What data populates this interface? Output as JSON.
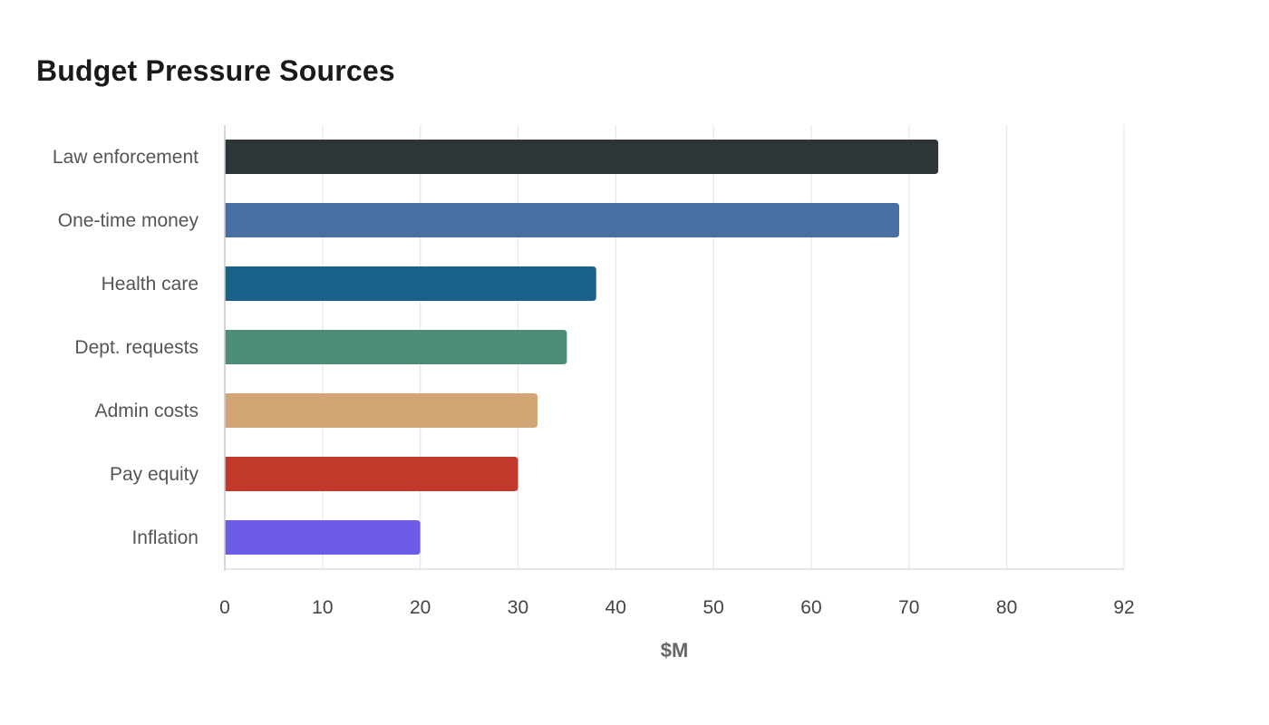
{
  "chart_data": {
    "type": "bar",
    "orientation": "horizontal",
    "title": "Budget Pressure Sources",
    "xlabel": "$M",
    "ylabel": "",
    "categories": [
      "Law enforcement",
      "One-time money",
      "Health care",
      "Dept. requests",
      "Admin costs",
      "Pay equity",
      "Inflation"
    ],
    "values": [
      73,
      69,
      38,
      35,
      32,
      30,
      20
    ],
    "colors": [
      "#2e3538",
      "#4a6fa5",
      "#186188",
      "#4e8c7a",
      "#d4a574",
      "#c0392b",
      "#6c5ce7"
    ],
    "xlim": [
      0,
      92
    ],
    "xticks": [
      0,
      10,
      20,
      30,
      40,
      50,
      60,
      70,
      80,
      92
    ],
    "grid": true,
    "legend": "none"
  }
}
